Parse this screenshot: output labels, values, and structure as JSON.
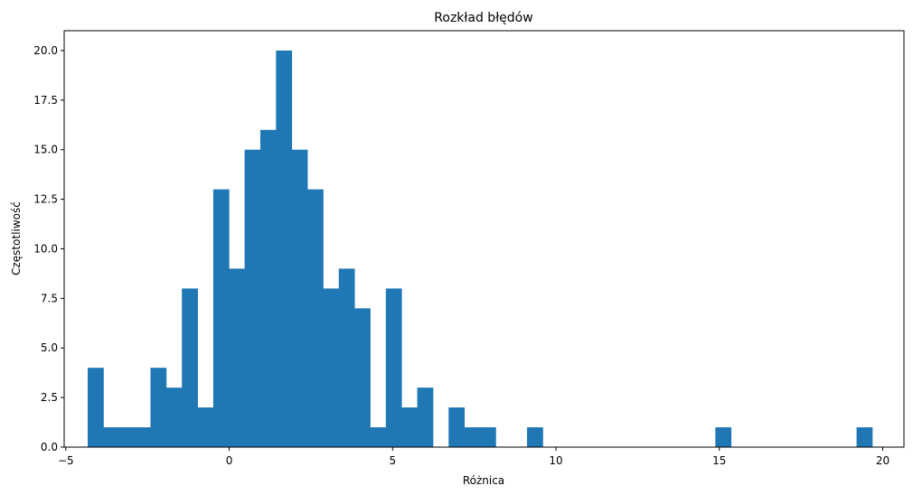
{
  "chart_data": {
    "type": "bar",
    "title": "Rozkład błędów",
    "xlabel": "Różnica",
    "ylabel": "Częstotliwość",
    "xlim": [
      -5.05,
      20.65
    ],
    "ylim": [
      0,
      21
    ],
    "xticks": [
      -5,
      0,
      5,
      10,
      15,
      20
    ],
    "xtick_labels": [
      "−5",
      "0",
      "5",
      "10",
      "15",
      "20"
    ],
    "yticks": [
      0,
      2.5,
      5,
      7.5,
      10,
      12.5,
      15,
      17.5,
      20
    ],
    "ytick_labels": [
      "0.0",
      "2.5",
      "5.0",
      "7.5",
      "10.0",
      "12.5",
      "15.0",
      "17.5",
      "20.0"
    ],
    "grid": false,
    "bar_color": "#1f77b4",
    "bin_start": -4.33,
    "bin_width": 0.4802,
    "counts": [
      4,
      1,
      1,
      1,
      4,
      3,
      8,
      2,
      13,
      9,
      15,
      16,
      20,
      15,
      13,
      8,
      9,
      7,
      1,
      8,
      2,
      3,
      0,
      2,
      1,
      1,
      0,
      0,
      1,
      0,
      0,
      0,
      0,
      0,
      0,
      0,
      0,
      0,
      0,
      0,
      1,
      0,
      0,
      0,
      0,
      0,
      0,
      0,
      0,
      1
    ]
  }
}
